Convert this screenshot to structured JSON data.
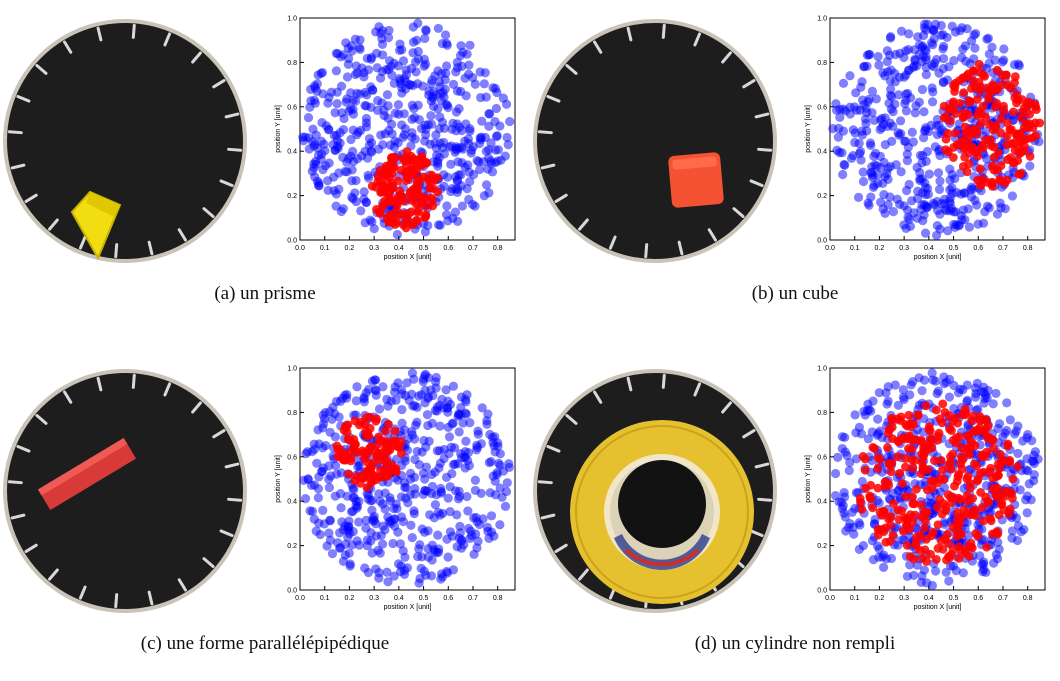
{
  "colors": {
    "series_a": "#0000ff",
    "series_b": "#ff0000",
    "board": "#1d1d1d"
  },
  "panels": [
    {
      "caption": "(a)  un prisme",
      "object": "yellow-prism",
      "object_color": "#f2dd12",
      "chart_data": {
        "type": "scatter",
        "xlabel": "position X [unit]",
        "ylabel": "position Y [unit]",
        "xlim": [
          0.0,
          0.87
        ],
        "ylim": [
          0.0,
          1.0
        ],
        "xticks": [
          "0.0",
          "0.1",
          "0.2",
          "0.3",
          "0.4",
          "0.5",
          "0.6",
          "0.7",
          "0.8"
        ],
        "yticks": [
          "0.0",
          "0.2",
          "0.4",
          "0.6",
          "0.8",
          "1.0"
        ],
        "grid": false,
        "series": [
          {
            "color": "#0000ff",
            "region": {
              "cx": 0.43,
              "cy": 0.5,
              "rx": 0.42,
              "ry": 0.48
            },
            "count": 520
          },
          {
            "color": "#ff0000",
            "region": {
              "cx": 0.43,
              "cy": 0.22,
              "rx": 0.14,
              "ry": 0.18
            },
            "count": 150
          }
        ]
      }
    },
    {
      "caption": "(b)  un cube",
      "object": "orange-cube",
      "object_color": "#f45233",
      "chart_data": {
        "type": "scatter",
        "xlabel": "position X [unit]",
        "ylabel": "position Y [unit]",
        "xlim": [
          0.0,
          0.87
        ],
        "ylim": [
          0.0,
          1.0
        ],
        "xticks": [
          "0.0",
          "0.1",
          "0.2",
          "0.3",
          "0.4",
          "0.5",
          "0.6",
          "0.7",
          "0.8"
        ],
        "yticks": [
          "0.0",
          "0.2",
          "0.4",
          "0.6",
          "0.8",
          "1.0"
        ],
        "grid": false,
        "series": [
          {
            "color": "#0000ff",
            "region": {
              "cx": 0.43,
              "cy": 0.5,
              "rx": 0.42,
              "ry": 0.48
            },
            "count": 520
          },
          {
            "color": "#ff0000",
            "region": {
              "cx": 0.65,
              "cy": 0.52,
              "rx": 0.2,
              "ry": 0.28
            },
            "count": 190
          }
        ]
      }
    },
    {
      "caption": "(c)  une forme parallélépipédique",
      "object": "red-bar",
      "object_color": "#d83a37",
      "chart_data": {
        "type": "scatter",
        "xlabel": "position X [unit]",
        "ylabel": "position Y [unit]",
        "xlim": [
          0.0,
          0.87
        ],
        "ylim": [
          0.0,
          1.0
        ],
        "xticks": [
          "0.0",
          "0.1",
          "0.2",
          "0.3",
          "0.4",
          "0.5",
          "0.6",
          "0.7",
          "0.8"
        ],
        "yticks": [
          "0.0",
          "0.2",
          "0.4",
          "0.6",
          "0.8",
          "1.0"
        ],
        "grid": false,
        "series": [
          {
            "color": "#0000ff",
            "region": {
              "cx": 0.43,
              "cy": 0.5,
              "rx": 0.42,
              "ry": 0.48
            },
            "count": 520
          },
          {
            "color": "#ff0000",
            "region": {
              "cx": 0.28,
              "cy": 0.62,
              "rx": 0.14,
              "ry": 0.16
            },
            "count": 110
          }
        ]
      }
    },
    {
      "caption": "(d)  un cylindre non rempli",
      "object": "tape-roll",
      "object_color": "#e6c12f",
      "chart_data": {
        "type": "scatter",
        "xlabel": "position X [unit]",
        "ylabel": "position Y [unit]",
        "xlim": [
          0.0,
          0.87
        ],
        "ylim": [
          0.0,
          1.0
        ],
        "xticks": [
          "0.0",
          "0.1",
          "0.2",
          "0.3",
          "0.4",
          "0.5",
          "0.6",
          "0.7",
          "0.8"
        ],
        "yticks": [
          "0.0",
          "0.2",
          "0.4",
          "0.6",
          "0.8",
          "1.0"
        ],
        "grid": false,
        "series": [
          {
            "color": "#0000ff",
            "region": {
              "cx": 0.43,
              "cy": 0.5,
              "rx": 0.42,
              "ry": 0.48
            },
            "count": 520
          },
          {
            "color": "#ff0000",
            "region": {
              "cx": 0.44,
              "cy": 0.48,
              "rx": 0.33,
              "ry": 0.36
            },
            "count": 340
          }
        ]
      }
    }
  ]
}
